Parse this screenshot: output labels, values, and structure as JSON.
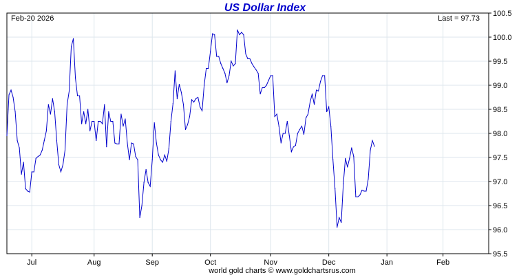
{
  "chart_data": {
    "type": "line",
    "title": "US Dollar Index",
    "date_label": "Feb-20  2026",
    "last_label": "Last = 97.73",
    "footer": "world gold charts © www.goldchartsrus.com",
    "ylim": [
      95.5,
      100.5
    ],
    "y_ticks": [
      95.5,
      96.0,
      96.5,
      97.0,
      97.5,
      98.0,
      98.5,
      99.0,
      99.5,
      100.0,
      100.5
    ],
    "y_tick_labels": [
      "95.5",
      "96.0",
      "96.5",
      "97.0",
      "97.5",
      "98.0",
      "98.5",
      "99.0",
      "99.5",
      "100.0",
      "100.5"
    ],
    "x_range": [
      0,
      232
    ],
    "x_ticks": [
      {
        "label": "Jul",
        "x": 12
      },
      {
        "label": "Aug",
        "x": 42
      },
      {
        "label": "Sep",
        "x": 70
      },
      {
        "label": "Oct",
        "x": 98
      },
      {
        "label": "Nov",
        "x": 127
      },
      {
        "label": "Dec",
        "x": 155
      },
      {
        "label": "Jan",
        "x": 183
      },
      {
        "label": "Feb",
        "x": 210
      }
    ],
    "grid": true,
    "line_color": "#0000cc",
    "series": [
      {
        "name": "",
        "values": [
          97.95,
          98.8,
          98.9,
          98.75,
          98.45,
          97.85,
          97.7,
          97.15,
          97.4,
          96.85,
          96.8,
          96.78,
          97.2,
          97.2,
          97.48,
          97.52,
          97.55,
          97.65,
          97.85,
          98.05,
          98.6,
          98.4,
          98.72,
          98.45,
          97.85,
          97.35,
          97.2,
          97.35,
          97.65,
          98.6,
          98.88,
          99.8,
          99.97,
          99.15,
          98.78,
          98.78,
          98.2,
          98.45,
          98.2,
          98.5,
          98.05,
          98.25,
          98.25,
          97.85,
          98.25,
          98.25,
          98.2,
          98.6,
          97.72,
          98.45,
          98.25,
          98.25,
          97.8,
          97.78,
          97.78,
          98.4,
          98.15,
          98.3,
          97.8,
          97.45,
          97.8,
          97.78,
          97.52,
          97.45,
          96.25,
          96.5,
          96.98,
          97.25,
          96.98,
          96.9,
          97.45,
          98.22,
          97.8,
          97.55,
          97.45,
          97.4,
          97.55,
          97.42,
          97.68,
          98.25,
          98.62,
          99.3,
          98.72,
          99.02,
          98.85,
          98.6,
          98.08,
          98.18,
          98.35,
          98.7,
          98.65,
          98.72,
          98.75,
          98.55,
          98.47,
          99.0,
          99.35,
          99.35,
          99.7,
          100.07,
          100.05,
          99.6,
          99.6,
          99.45,
          99.35,
          99.25,
          99.05,
          99.2,
          99.5,
          99.4,
          99.45,
          100.15,
          100.05,
          100.1,
          100.05,
          99.65,
          99.55,
          99.55,
          99.45,
          99.38,
          99.32,
          99.25,
          98.82,
          98.95,
          98.95,
          99.0,
          99.1,
          99.2,
          99.2,
          98.35,
          98.4,
          98.15,
          97.8,
          98.0,
          98.0,
          98.25,
          97.95,
          97.62,
          97.72,
          97.75,
          98.0,
          98.08,
          98.15,
          97.98,
          98.32,
          98.4,
          98.65,
          98.82,
          98.6,
          98.9,
          98.88,
          99.08,
          99.2,
          99.2,
          98.45,
          98.55,
          98.15,
          97.45,
          96.85,
          96.05,
          96.25,
          96.15,
          96.95,
          97.48,
          97.3,
          97.48,
          97.7,
          97.52,
          96.68,
          96.68,
          96.72,
          96.82,
          96.8,
          96.8,
          97.05,
          97.65,
          97.85,
          97.73
        ]
      }
    ]
  }
}
